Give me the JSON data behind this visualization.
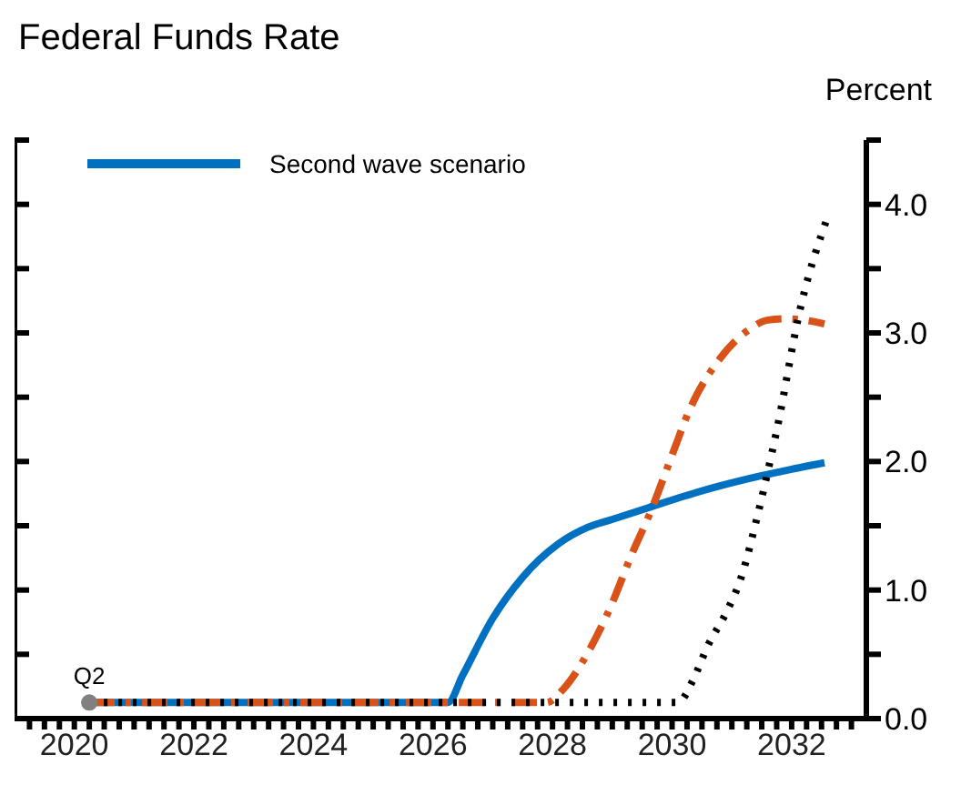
{
  "chart_data": {
    "type": "line",
    "title": "Federal Funds Rate",
    "ylabel": "Percent",
    "xlim": [
      2019,
      2033.25
    ],
    "xticks": [
      {
        "value": 2019.25,
        "label": null
      },
      {
        "value": 2019.5,
        "label": null
      },
      {
        "value": 2019.75,
        "label": null
      },
      2020,
      {
        "value": 2020.25,
        "label": null
      },
      {
        "value": 2020.5,
        "label": null
      },
      {
        "value": 2020.75,
        "label": null
      },
      {
        "value": 2021,
        "label": null
      },
      {
        "value": 2021.25,
        "label": null
      },
      {
        "value": 2021.5,
        "label": null
      },
      {
        "value": 2021.75,
        "label": null
      },
      2022,
      {
        "value": 2022.25,
        "label": null
      },
      {
        "value": 2022.5,
        "label": null
      },
      {
        "value": 2022.75,
        "label": null
      },
      {
        "value": 2023,
        "label": null
      },
      {
        "value": 2023.25,
        "label": null
      },
      {
        "value": 2023.5,
        "label": null
      },
      {
        "value": 2023.75,
        "label": null
      },
      2024,
      {
        "value": 2024.25,
        "label": null
      },
      {
        "value": 2024.5,
        "label": null
      },
      {
        "value": 2024.75,
        "label": null
      },
      {
        "value": 2025,
        "label": null
      },
      {
        "value": 2025.25,
        "label": null
      },
      {
        "value": 2025.5,
        "label": null
      },
      {
        "value": 2025.75,
        "label": null
      },
      2026,
      {
        "value": 2026.25,
        "label": null
      },
      {
        "value": 2026.5,
        "label": null
      },
      {
        "value": 2026.75,
        "label": null
      },
      {
        "value": 2027,
        "label": null
      },
      {
        "value": 2027.25,
        "label": null
      },
      {
        "value": 2027.5,
        "label": null
      },
      {
        "value": 2027.75,
        "label": null
      },
      2028,
      {
        "value": 2028.25,
        "label": null
      },
      {
        "value": 2028.5,
        "label": null
      },
      {
        "value": 2028.75,
        "label": null
      },
      {
        "value": 2029,
        "label": null
      },
      {
        "value": 2029.25,
        "label": null
      },
      {
        "value": 2029.5,
        "label": null
      },
      {
        "value": 2029.75,
        "label": null
      },
      2030,
      {
        "value": 2030.25,
        "label": null
      },
      {
        "value": 2030.5,
        "label": null
      },
      {
        "value": 2030.75,
        "label": null
      },
      {
        "value": 2031,
        "label": null
      },
      {
        "value": 2031.25,
        "label": null
      },
      {
        "value": 2031.5,
        "label": null
      },
      {
        "value": 2031.75,
        "label": null
      },
      2032,
      {
        "value": 2032.25,
        "label": null
      },
      {
        "value": 2032.5,
        "label": null
      },
      {
        "value": 2032.75,
        "label": null
      },
      {
        "value": 2033,
        "label": null
      }
    ],
    "ylim": [
      0,
      4.5
    ],
    "yticks": [
      {
        "value": 0,
        "label": "0.0"
      },
      {
        "value": 0.5,
        "label": null
      },
      {
        "value": 1,
        "label": "1.0"
      },
      {
        "value": 1.5,
        "label": null
      },
      {
        "value": 2,
        "label": "2.0"
      },
      {
        "value": 2.5,
        "label": null
      },
      {
        "value": 3,
        "label": "3.0"
      },
      {
        "value": 3.5,
        "label": null
      },
      {
        "value": 4,
        "label": "4.0"
      },
      {
        "value": 4.5,
        "label": null
      }
    ],
    "grid": false,
    "legend": "top left",
    "annotations": [
      {
        "text": "Q2",
        "x": 2020.25,
        "y": 0.125
      }
    ],
    "series": [
      {
        "name": "Second wave scenario",
        "color": "#0070c0",
        "line_style": "solid",
        "x": [
          2020.25,
          2026.25,
          2026.5,
          2027,
          2027.5,
          2028.1,
          2028.6,
          2029,
          2029.6,
          2030.2,
          2030.8,
          2031.5,
          2032,
          2032.55
        ],
        "values": [
          0.125,
          0.125,
          0.34,
          0.78,
          1.1,
          1.36,
          1.49,
          1.55,
          1.64,
          1.73,
          1.81,
          1.89,
          1.94,
          1.99
        ]
      },
      {
        "color": "#d95319",
        "line_style": "dashdot",
        "x": [
          2020.25,
          2027.9,
          2028.2,
          2028.6,
          2029,
          2029.3,
          2029.65,
          2030,
          2030.3,
          2030.8,
          2031.3,
          2031.6,
          2031.9,
          2032.2,
          2032.55
        ],
        "values": [
          0.125,
          0.125,
          0.24,
          0.52,
          0.9,
          1.25,
          1.62,
          2.05,
          2.41,
          2.8,
          3.03,
          3.1,
          3.11,
          3.1,
          3.07
        ]
      },
      {
        "color": "#000000",
        "line_style": "dotted",
        "x": [
          2020.25,
          2030.1,
          2030.35,
          2030.6,
          2030.9,
          2031.15,
          2031.45,
          2031.75,
          2032.15,
          2032.6
        ],
        "values": [
          0.125,
          0.125,
          0.3,
          0.57,
          0.82,
          1.09,
          1.62,
          2.24,
          3.2,
          3.9
        ]
      },
      {
        "type": "scatter",
        "color": "#808080",
        "marker": "circle",
        "x": [
          2020.25
        ],
        "values": [
          0.125
        ]
      }
    ]
  }
}
